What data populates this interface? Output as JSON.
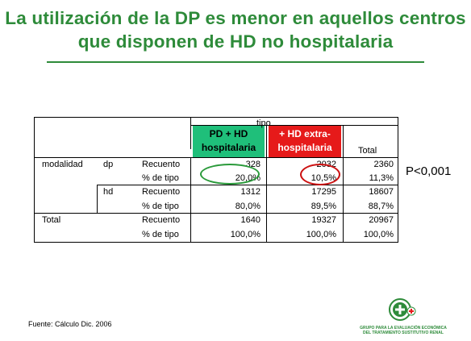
{
  "title": "La utilización de la DP es menor en aquellos centros que disponen de HD no hospitalaria",
  "table": {
    "super_header": "tipo",
    "col_headers": {
      "c1": [
        "PD + HD",
        "hospitalaria"
      ],
      "c2": [
        "+ HD extra-",
        "hospitalaria"
      ],
      "total": "Total"
    },
    "row_group_label": "modalidad",
    "total_label": "Total",
    "rows": [
      {
        "g": "dp",
        "measure": "Recuento",
        "c1": "328",
        "c2": "2032",
        "total": "2360"
      },
      {
        "g": "",
        "measure": "% de tipo",
        "c1": "20,0%",
        "c2": "10,5%",
        "total": "11,3%"
      },
      {
        "g": "hd",
        "measure": "Recuento",
        "c1": "1312",
        "c2": "17295",
        "total": "18607"
      },
      {
        "g": "",
        "measure": "% de tipo",
        "c1": "80,0%",
        "c2": "89,5%",
        "total": "88,7%"
      },
      {
        "g": "",
        "measure": "Recuento",
        "c1": "1640",
        "c2": "19327",
        "total": "20967"
      },
      {
        "g": "",
        "measure": "% de tipo",
        "c1": "100,0%",
        "c2": "100,0%",
        "total": "100,0%"
      }
    ]
  },
  "p_value": "P<0,001",
  "source": "Fuente: Cálculo Dic. 2006",
  "logo": {
    "line1": "GRUPO PARA LA EVALUACIÓN ECONÓMICA",
    "line2": "DEL TRATAMIENTO SUSTITUTIVO RENAL",
    "brand_color": "#2e8b3a",
    "cross_color": "#e61a1a"
  },
  "colors": {
    "green_header": "#1fbf7a",
    "red_header": "#e61a1a",
    "green_circle": "#2a9a3a",
    "red_circle": "#cc1111"
  }
}
